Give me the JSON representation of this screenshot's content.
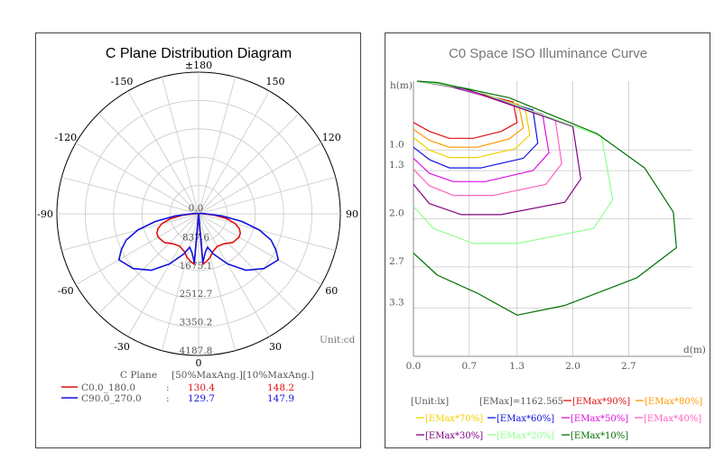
{
  "chart_data": [
    {
      "type": "polar-line",
      "title": "C Plane Distribution Diagram",
      "unit_label": "Unit:cd",
      "angle_labels": [
        {
          "deg": 180,
          "text": "±180"
        },
        {
          "deg": -150,
          "text": "-150"
        },
        {
          "deg": 150,
          "text": "150"
        },
        {
          "deg": -120,
          "text": "-120"
        },
        {
          "deg": 120,
          "text": "120"
        },
        {
          "deg": -90,
          "text": "-90"
        },
        {
          "deg": 90,
          "text": "90"
        },
        {
          "deg": -60,
          "text": "-60"
        },
        {
          "deg": 60,
          "text": "60"
        },
        {
          "deg": -30,
          "text": "-30"
        },
        {
          "deg": 30,
          "text": "30"
        },
        {
          "deg": 0,
          "text": "0"
        }
      ],
      "radial_max": 4187.8,
      "radial_labels": [
        "0.0",
        "837.6",
        "1675.1",
        "2512.7",
        "3350.2",
        "4187.8"
      ],
      "series": [
        {
          "name": "C0.0_180.0",
          "color": "#e01010",
          "points": [
            [
              0,
              0
            ],
            [
              5,
              1500
            ],
            [
              10,
              1420
            ],
            [
              15,
              1330
            ],
            [
              20,
              1200
            ],
            [
              30,
              1110
            ],
            [
              40,
              1160
            ],
            [
              50,
              1320
            ],
            [
              60,
              1380
            ],
            [
              65,
              1360
            ],
            [
              70,
              1280
            ],
            [
              75,
              1120
            ],
            [
              80,
              850
            ],
            [
              85,
              470
            ],
            [
              90,
              140
            ],
            [
              100,
              60
            ],
            [
              180,
              0
            ],
            [
              -100,
              60
            ],
            [
              -90,
              140
            ],
            [
              -85,
              470
            ],
            [
              -80,
              850
            ],
            [
              -75,
              1120
            ],
            [
              -70,
              1280
            ],
            [
              -65,
              1360
            ],
            [
              -60,
              1380
            ],
            [
              -50,
              1320
            ],
            [
              -40,
              1160
            ],
            [
              -30,
              1110
            ],
            [
              -20,
              1200
            ],
            [
              -15,
              1330
            ],
            [
              -10,
              1420
            ],
            [
              -5,
              1500
            ],
            [
              0,
              0
            ]
          ]
        },
        {
          "name": "C90.0_270.0",
          "color": "#1010e0",
          "points": [
            [
              0,
              0
            ],
            [
              5,
              1450
            ],
            [
              10,
              1150
            ],
            [
              15,
              1020
            ],
            [
              20,
              1260
            ],
            [
              30,
              1710
            ],
            [
              40,
              2180
            ],
            [
              50,
              2520
            ],
            [
              60,
              2720
            ],
            [
              65,
              2520
            ],
            [
              70,
              2280
            ],
            [
              75,
              1860
            ],
            [
              80,
              1300
            ],
            [
              85,
              690
            ],
            [
              90,
              220
            ],
            [
              100,
              70
            ],
            [
              180,
              0
            ],
            [
              -100,
              70
            ],
            [
              -90,
              220
            ],
            [
              -85,
              690
            ],
            [
              -80,
              1300
            ],
            [
              -75,
              1860
            ],
            [
              -70,
              2280
            ],
            [
              -65,
              2520
            ],
            [
              -60,
              2720
            ],
            [
              -50,
              2520
            ],
            [
              -40,
              2180
            ],
            [
              -30,
              1710
            ],
            [
              -20,
              1260
            ],
            [
              -15,
              1020
            ],
            [
              -10,
              1150
            ],
            [
              -5,
              1450
            ],
            [
              0,
              0
            ]
          ]
        }
      ],
      "legend": {
        "header_left": "C Plane",
        "header_right": "[50%MaxAng.][10%MaxAng.]",
        "rows": [
          {
            "label": "C0.0_180.0",
            "sep": ":",
            "v50": "130.4",
            "v10": "148.2",
            "color": "#e01010"
          },
          {
            "label": "C90.0_270.0",
            "sep": ":",
            "v50": "129.7",
            "v10": "147.9",
            "color": "#1010e0"
          }
        ]
      }
    },
    {
      "type": "contour-line",
      "title": "C0 Space ISO Illuminance Curve",
      "ylabel": "h(m)",
      "xlabel": "d(m)",
      "x_range": [
        0,
        3.5
      ],
      "y_range": [
        0,
        4.0
      ],
      "x_ticks": [
        {
          "v": 0,
          "text": "0.0"
        },
        {
          "v": 0.7,
          "text": "0.7"
        },
        {
          "v": 1.3,
          "text": "1.3"
        },
        {
          "v": 2.0,
          "text": "2.0"
        },
        {
          "v": 2.7,
          "text": "2.7"
        }
      ],
      "y_ticks": [
        {
          "v": 1.0,
          "text": "1.0"
        },
        {
          "v": 1.3,
          "text": "1.3"
        },
        {
          "v": 2.0,
          "text": "2.0"
        },
        {
          "v": 2.7,
          "text": "2.7"
        },
        {
          "v": 3.3,
          "text": "3.3"
        }
      ],
      "series": [
        {
          "name": "[EMax*90%]",
          "color": "#e01010",
          "points": [
            [
              0,
              0.6
            ],
            [
              0.2,
              0.73
            ],
            [
              0.45,
              0.83
            ],
            [
              0.75,
              0.83
            ],
            [
              1.1,
              0.73
            ],
            [
              1.3,
              0.6
            ],
            [
              1.25,
              0.3
            ],
            [
              0.4,
              0.06
            ],
            [
              0.05,
              0
            ]
          ]
        },
        {
          "name": "[EMax*80%]",
          "color": "#ff9900",
          "points": [
            [
              0,
              0.7
            ],
            [
              0.2,
              0.86
            ],
            [
              0.45,
              0.96
            ],
            [
              0.8,
              0.96
            ],
            [
              1.2,
              0.84
            ],
            [
              1.38,
              0.68
            ],
            [
              1.32,
              0.34
            ],
            [
              0.42,
              0.07
            ],
            [
              0.05,
              0
            ]
          ]
        },
        {
          "name": "[EMax*70%]",
          "color": "#f0d000",
          "points": [
            [
              0,
              0.82
            ],
            [
              0.2,
              1.0
            ],
            [
              0.45,
              1.11
            ],
            [
              0.8,
              1.11
            ],
            [
              1.28,
              0.98
            ],
            [
              1.46,
              0.78
            ],
            [
              1.4,
              0.38
            ],
            [
              0.45,
              0.07
            ],
            [
              0.05,
              0
            ]
          ]
        },
        {
          "name": "[EMax*60%]",
          "color": "#1010e0",
          "points": [
            [
              0,
              0.96
            ],
            [
              0.2,
              1.14
            ],
            [
              0.45,
              1.26
            ],
            [
              0.85,
              1.26
            ],
            [
              1.38,
              1.12
            ],
            [
              1.56,
              0.9
            ],
            [
              1.5,
              0.42
            ],
            [
              0.48,
              0.08
            ],
            [
              0.05,
              0
            ]
          ]
        },
        {
          "name": "[EMax*50%]",
          "color": "#e010e0",
          "points": [
            [
              0,
              1.12
            ],
            [
              0.2,
              1.34
            ],
            [
              0.5,
              1.46
            ],
            [
              0.9,
              1.46
            ],
            [
              1.5,
              1.3
            ],
            [
              1.7,
              1.04
            ],
            [
              1.62,
              0.48
            ],
            [
              0.52,
              0.08
            ],
            [
              0.05,
              0
            ]
          ]
        },
        {
          "name": "[EMax*40%]",
          "color": "#ff60c0",
          "points": [
            [
              0,
              1.28
            ],
            [
              0.2,
              1.52
            ],
            [
              0.5,
              1.66
            ],
            [
              1.0,
              1.66
            ],
            [
              1.66,
              1.5
            ],
            [
              1.86,
              1.2
            ],
            [
              1.78,
              0.56
            ],
            [
              0.56,
              0.09
            ],
            [
              0.05,
              0
            ]
          ]
        },
        {
          "name": "[EMax*30%]",
          "color": "#800080",
          "points": [
            [
              0,
              1.5
            ],
            [
              0.2,
              1.78
            ],
            [
              0.6,
              1.94
            ],
            [
              1.1,
              1.94
            ],
            [
              1.9,
              1.76
            ],
            [
              2.1,
              1.42
            ],
            [
              2.0,
              0.66
            ],
            [
              0.62,
              0.1
            ],
            [
              0.05,
              0
            ]
          ]
        },
        {
          "name": "[EMax*20%]",
          "color": "#90ff90",
          "points": [
            [
              0,
              1.82
            ],
            [
              0.25,
              2.14
            ],
            [
              0.75,
              2.36
            ],
            [
              1.3,
              2.36
            ],
            [
              2.26,
              2.14
            ],
            [
              2.5,
              1.72
            ],
            [
              2.36,
              0.8
            ],
            [
              0.72,
              0.11
            ],
            [
              0.05,
              0
            ]
          ]
        },
        {
          "name": "[EMax*10%]",
          "color": "#007000",
          "points": [
            [
              0,
              2.5
            ],
            [
              0.3,
              2.82
            ],
            [
              0.8,
              3.08
            ],
            [
              1.3,
              3.4
            ],
            [
              1.9,
              3.26
            ],
            [
              2.8,
              2.86
            ],
            [
              3.3,
              2.42
            ],
            [
              3.26,
              1.9
            ],
            [
              2.9,
              1.26
            ],
            [
              2.3,
              0.76
            ],
            [
              1.2,
              0.24
            ],
            [
              0.3,
              0.02
            ],
            [
              0.05,
              0
            ]
          ]
        }
      ],
      "legend": {
        "unit": "[Unit:lx]",
        "emax": "[EMax]=1162.565"
      }
    }
  ]
}
